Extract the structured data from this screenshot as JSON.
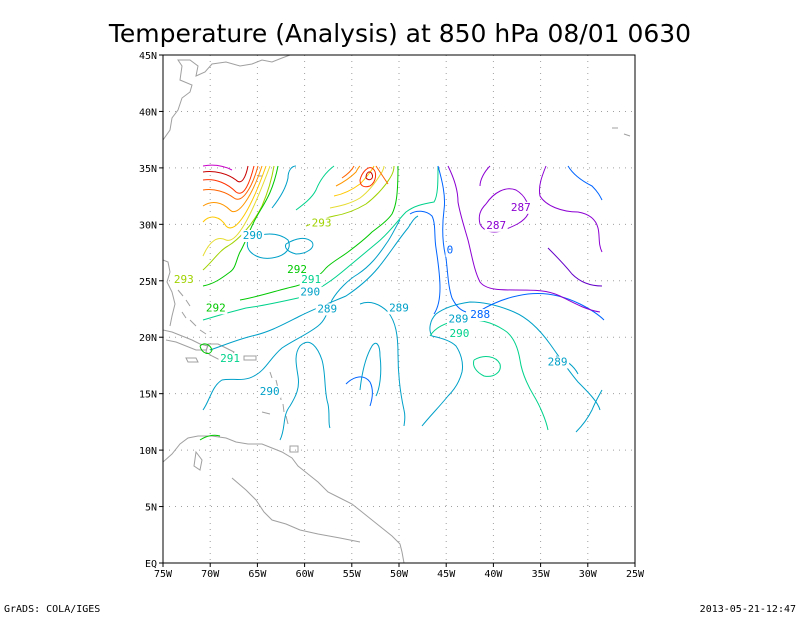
{
  "title": "Temperature (Analysis) at 850 hPa 08/01 0630",
  "footer": {
    "left": "GrADS: COLA/IGES",
    "right": "2013-05-21-12:47"
  },
  "axes": {
    "x_ticks": [
      "75W",
      "70W",
      "65W",
      "60W",
      "55W",
      "50W",
      "45W",
      "40W",
      "35W",
      "30W",
      "25W"
    ],
    "y_ticks": [
      "EQ",
      "5N",
      "10N",
      "15N",
      "20N",
      "25N",
      "30N",
      "35N",
      "40N",
      "45N"
    ]
  },
  "contour_labels": [
    {
      "text": "290",
      "lon": -65.5,
      "lat": 28.7,
      "color": "#00a0c8"
    },
    {
      "text": "293",
      "lon": -58.2,
      "lat": 29.8,
      "color": "#a0d200"
    },
    {
      "text": "287",
      "lon": -37.1,
      "lat": 31.2,
      "color": "#8c00d2"
    },
    {
      "text": "287",
      "lon": -39.7,
      "lat": 29.6,
      "color": "#8c00d2"
    },
    {
      "text": "0",
      "lon": -44.6,
      "lat": 27.4,
      "color": "#0064ff"
    },
    {
      "text": "292",
      "lon": -60.8,
      "lat": 25.7,
      "color": "#00c800"
    },
    {
      "text": "291",
      "lon": -59.3,
      "lat": 24.8,
      "color": "#00d28c"
    },
    {
      "text": "290",
      "lon": -59.4,
      "lat": 23.7,
      "color": "#00a0c8"
    },
    {
      "text": "293",
      "lon": -72.8,
      "lat": 24.8,
      "color": "#a0d200"
    },
    {
      "text": "292",
      "lon": -69.4,
      "lat": 22.3,
      "color": "#00c800"
    },
    {
      "text": "289",
      "lon": -57.6,
      "lat": 22.2,
      "color": "#00a0c8"
    },
    {
      "text": "289",
      "lon": -50.0,
      "lat": 22.3,
      "color": "#00a0c8"
    },
    {
      "text": "289",
      "lon": -43.7,
      "lat": 21.3,
      "color": "#00a0c8"
    },
    {
      "text": "288",
      "lon": -41.4,
      "lat": 21.7,
      "color": "#0064ff"
    },
    {
      "text": "290",
      "lon": -43.6,
      "lat": 20.0,
      "color": "#00d28c"
    },
    {
      "text": "291",
      "lon": -67.9,
      "lat": 17.8,
      "color": "#00d28c"
    },
    {
      "text": "289",
      "lon": -33.2,
      "lat": 17.5,
      "color": "#00a0c8"
    },
    {
      "text": "290",
      "lon": -63.7,
      "lat": 14.9,
      "color": "#00a0c8"
    }
  ],
  "colors": {
    "warm_max": "#c80000",
    "warm_1": "#ff3200",
    "warm_2": "#ff9600",
    "warm_3": "#e6dc32",
    "mid_293": "#a0d200",
    "mid_292": "#00c800",
    "mid_291": "#00d28c",
    "mid_290": "#00a0c8",
    "cool_288": "#0064ff",
    "cool_287": "#8c00d2",
    "cool_286": "#6400c8",
    "magenta": "#c800c8",
    "coast": "#a0a0a0"
  }
}
